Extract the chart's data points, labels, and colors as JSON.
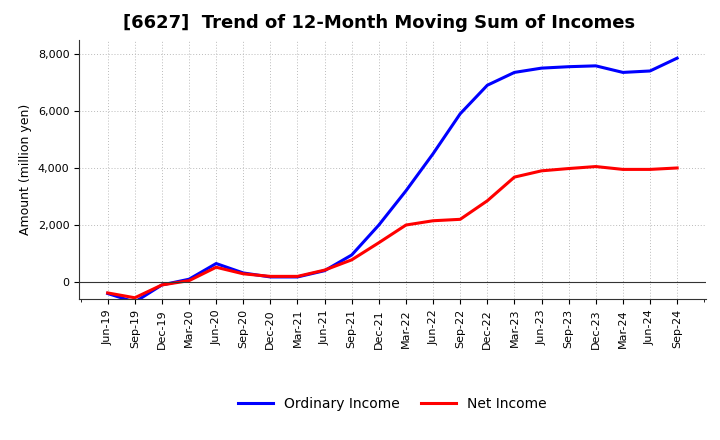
{
  "title": "[6627]  Trend of 12-Month Moving Sum of Incomes",
  "ylabel": "Amount (million yen)",
  "xlabels": [
    "Jun-19",
    "Sep-19",
    "Dec-19",
    "Mar-20",
    "Jun-20",
    "Sep-20",
    "Dec-20",
    "Mar-21",
    "Jun-21",
    "Sep-21",
    "Dec-21",
    "Mar-22",
    "Jun-22",
    "Sep-22",
    "Dec-22",
    "Mar-23",
    "Jun-23",
    "Sep-23",
    "Dec-23",
    "Mar-24",
    "Jun-24",
    "Sep-24"
  ],
  "ordinary_income": [
    -400,
    -700,
    -100,
    100,
    650,
    320,
    180,
    180,
    400,
    950,
    2000,
    3200,
    4500,
    5900,
    6900,
    7350,
    7500,
    7550,
    7580,
    7350,
    7400,
    7850
  ],
  "net_income": [
    -380,
    -550,
    -100,
    50,
    520,
    290,
    200,
    200,
    420,
    780,
    1380,
    2000,
    2150,
    2200,
    2850,
    3680,
    3900,
    3980,
    4050,
    3950,
    3950,
    4000
  ],
  "ylim": [
    -600,
    8500
  ],
  "yticks": [
    0,
    2000,
    4000,
    6000,
    8000
  ],
  "ordinary_color": "#0000FF",
  "net_color": "#FF0000",
  "bg_color": "#FFFFFF",
  "grid_color": "#BBBBBB",
  "line_width": 2.2,
  "title_fontsize": 13,
  "label_fontsize": 9,
  "tick_fontsize": 8
}
